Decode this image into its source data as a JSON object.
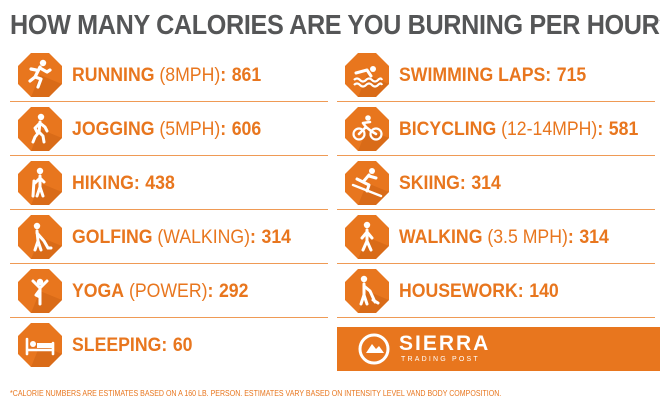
{
  "title": {
    "text": "HOW MANY CALORIES ARE YOU BURNING PER HOUR",
    "mark": "*?"
  },
  "colors": {
    "accent": "#e8761e",
    "badge": "#e8761e",
    "title": "#555657",
    "divider": "#ef9a55"
  },
  "left": [
    {
      "activity": "RUNNING",
      "note": " (8MPH)",
      "colon": ":",
      "value": "861",
      "icon": "running-icon"
    },
    {
      "activity": "JOGGING",
      "note": " (5MPH)",
      "colon": ":",
      "value": "606",
      "icon": "jogging-icon"
    },
    {
      "activity": "HIKING",
      "note": "",
      "colon": ":",
      "value": "438",
      "icon": "hiking-icon"
    },
    {
      "activity": "GOLFING",
      "note": " (WALKING)",
      "colon": ":",
      "value": "314",
      "icon": "golfing-icon"
    },
    {
      "activity": "YOGA",
      "note": " (POWER)",
      "colon": ":",
      "value": "292",
      "icon": "yoga-icon"
    },
    {
      "activity": "SLEEPING",
      "note": "",
      "colon": ":",
      "value": "60",
      "icon": "sleeping-icon"
    }
  ],
  "right": [
    {
      "activity": "SWIMMING LAPS",
      "note": "",
      "colon": ":",
      "value": "715",
      "icon": "swimming-icon"
    },
    {
      "activity": "BICYCLING",
      "note": " (12-14MPH)",
      "colon": ":",
      "value": "581",
      "icon": "bicycling-icon"
    },
    {
      "activity": "SKIING",
      "note": "",
      "colon": ":",
      "value": "314",
      "icon": "skiing-icon"
    },
    {
      "activity": "WALKING",
      "note": " (3.5 MPH)",
      "colon": ":",
      "value": "314",
      "icon": "walking-icon"
    },
    {
      "activity": "HOUSEWORK",
      "note": "",
      "colon": ":",
      "value": "140",
      "icon": "housework-icon"
    }
  ],
  "sponsor": {
    "name": "SIERRA",
    "tagline": "TRADING POST",
    "icon": "sierra-logo-icon"
  },
  "footnote": "*CALORIE NUMBERS ARE ESTIMATES BASED ON A 160 LB. PERSON. ESTIMATES VARY BASED ON INTENSITY LEVEL VAND BODY COMPOSITION."
}
